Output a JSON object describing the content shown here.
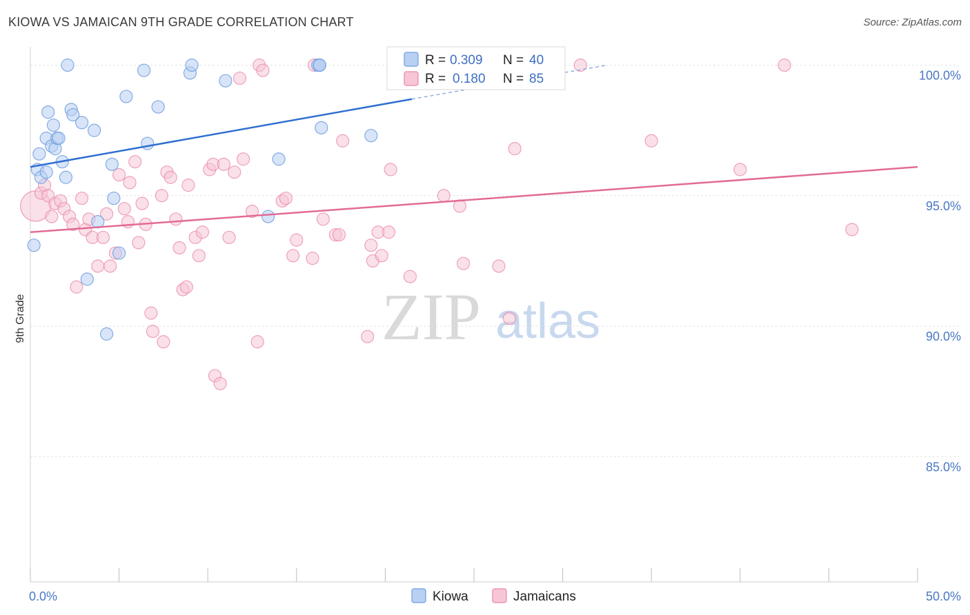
{
  "title": "KIOWA VS JAMAICAN 9TH GRADE CORRELATION CHART",
  "source": "Source: ZipAtlas.com",
  "watermark": {
    "zip": "ZIP",
    "atlas": "atlas"
  },
  "chart_data": {
    "type": "scatter",
    "ylabel": "9th Grade",
    "xlim": [
      0,
      50
    ],
    "ylim": [
      80.2,
      100.7
    ],
    "x_tick_labels": [
      {
        "value": 0,
        "label": "0.0%"
      },
      {
        "value": 50,
        "label": "50.0%"
      }
    ],
    "y_ticks": [
      {
        "value": 100,
        "label": "100.0%"
      },
      {
        "value": 95,
        "label": "95.0%"
      },
      {
        "value": 90,
        "label": "90.0%"
      },
      {
        "value": 85,
        "label": "85.0%"
      }
    ],
    "grid": true,
    "legend_position": "top-center",
    "colors": {
      "kiowa": "#6f9de0",
      "kiowa_fill": "#b8d0f2",
      "jamaicans": "#e986a8",
      "jamaicans_fill": "#f6c6d6"
    },
    "stats": [
      {
        "series": "Kiowa",
        "r_label": "R =",
        "r": "0.309",
        "n_label": "N =",
        "n": "40"
      },
      {
        "series": "Jamaicans",
        "r_label": "R =",
        "r": "0.180",
        "n_label": "N =",
        "n": "85"
      }
    ],
    "series": [
      {
        "name": "Kiowa",
        "trend": {
          "x0": 0,
          "y0": 96.1,
          "x1": 21.5,
          "y1": 98.7,
          "dash_x1": 32.5,
          "dash_y1": 100.0
        },
        "points": [
          [
            0.2,
            93.1
          ],
          [
            0.4,
            96.0
          ],
          [
            0.5,
            96.6
          ],
          [
            0.6,
            95.7
          ],
          [
            0.9,
            95.9
          ],
          [
            0.9,
            97.2
          ],
          [
            1.0,
            98.2
          ],
          [
            1.2,
            96.9
          ],
          [
            1.3,
            97.7
          ],
          [
            1.4,
            96.8
          ],
          [
            1.5,
            97.2
          ],
          [
            1.6,
            97.2
          ],
          [
            1.8,
            96.3
          ],
          [
            2.0,
            95.7
          ],
          [
            2.1,
            100.0
          ],
          [
            2.3,
            98.3
          ],
          [
            2.4,
            98.1
          ],
          [
            2.9,
            97.8
          ],
          [
            3.2,
            91.8
          ],
          [
            3.6,
            97.5
          ],
          [
            3.8,
            94.0
          ],
          [
            4.3,
            89.7
          ],
          [
            4.6,
            96.2
          ],
          [
            4.7,
            94.9
          ],
          [
            5.0,
            92.8
          ],
          [
            5.4,
            98.8
          ],
          [
            6.4,
            99.8
          ],
          [
            6.6,
            97.0
          ],
          [
            7.2,
            98.4
          ],
          [
            9.0,
            99.7
          ],
          [
            9.1,
            100.0
          ],
          [
            11.0,
            99.4
          ],
          [
            13.4,
            94.2
          ],
          [
            14.0,
            96.4
          ],
          [
            16.2,
            100.0
          ],
          [
            16.3,
            100.0
          ],
          [
            16.3,
            100.0
          ],
          [
            16.3,
            100.0
          ],
          [
            16.4,
            97.6
          ],
          [
            19.2,
            97.3
          ]
        ]
      },
      {
        "name": "Jamaicans",
        "trend": {
          "x0": 0,
          "y0": 93.6,
          "x1": 50,
          "y1": 96.1
        },
        "points": [
          [
            0.3,
            94.6
          ],
          [
            0.6,
            95.1
          ],
          [
            0.8,
            95.4
          ],
          [
            1.0,
            95.0
          ],
          [
            1.2,
            94.2
          ],
          [
            1.4,
            94.7
          ],
          [
            1.7,
            94.8
          ],
          [
            1.9,
            94.5
          ],
          [
            2.2,
            94.2
          ],
          [
            2.4,
            93.9
          ],
          [
            2.6,
            91.5
          ],
          [
            2.9,
            94.9
          ],
          [
            3.1,
            93.7
          ],
          [
            3.3,
            94.1
          ],
          [
            3.5,
            93.4
          ],
          [
            3.8,
            92.3
          ],
          [
            4.1,
            93.4
          ],
          [
            4.3,
            94.3
          ],
          [
            4.5,
            92.3
          ],
          [
            4.8,
            92.8
          ],
          [
            5.0,
            95.8
          ],
          [
            5.3,
            94.5
          ],
          [
            5.5,
            94.0
          ],
          [
            5.6,
            95.5
          ],
          [
            5.9,
            96.3
          ],
          [
            6.1,
            93.2
          ],
          [
            6.3,
            94.7
          ],
          [
            6.5,
            93.9
          ],
          [
            6.8,
            90.5
          ],
          [
            6.9,
            89.8
          ],
          [
            7.4,
            95.0
          ],
          [
            7.5,
            89.4
          ],
          [
            7.7,
            95.9
          ],
          [
            7.9,
            95.7
          ],
          [
            8.2,
            94.1
          ],
          [
            8.4,
            93.0
          ],
          [
            8.6,
            91.4
          ],
          [
            8.8,
            91.5
          ],
          [
            8.9,
            95.4
          ],
          [
            9.3,
            93.4
          ],
          [
            9.5,
            92.7
          ],
          [
            9.7,
            93.6
          ],
          [
            10.1,
            96.0
          ],
          [
            10.3,
            96.2
          ],
          [
            10.4,
            88.1
          ],
          [
            10.7,
            87.8
          ],
          [
            10.9,
            96.2
          ],
          [
            11.2,
            93.4
          ],
          [
            11.5,
            95.9
          ],
          [
            11.8,
            99.5
          ],
          [
            12.0,
            96.4
          ],
          [
            12.5,
            94.4
          ],
          [
            12.8,
            89.4
          ],
          [
            12.9,
            100.0
          ],
          [
            13.1,
            99.8
          ],
          [
            14.2,
            94.8
          ],
          [
            14.4,
            94.9
          ],
          [
            14.8,
            92.7
          ],
          [
            15.0,
            93.3
          ],
          [
            15.9,
            92.6
          ],
          [
            16.0,
            100.0
          ],
          [
            16.5,
            94.1
          ],
          [
            17.2,
            93.5
          ],
          [
            17.4,
            93.5
          ],
          [
            17.6,
            97.1
          ],
          [
            19.0,
            89.6
          ],
          [
            19.2,
            93.1
          ],
          [
            19.3,
            92.5
          ],
          [
            19.6,
            93.6
          ],
          [
            19.8,
            92.7
          ],
          [
            20.2,
            93.6
          ],
          [
            20.3,
            96.0
          ],
          [
            21.4,
            91.9
          ],
          [
            23.3,
            95.0
          ],
          [
            24.2,
            94.6
          ],
          [
            24.4,
            92.4
          ],
          [
            26.4,
            92.3
          ],
          [
            26.5,
            100.0
          ],
          [
            27.0,
            90.3
          ],
          [
            27.3,
            96.8
          ],
          [
            35.0,
            97.1
          ],
          [
            42.5,
            100.0
          ],
          [
            46.3,
            93.7
          ],
          [
            40.0,
            96.0
          ],
          [
            31.0,
            100.0
          ]
        ]
      }
    ]
  },
  "bottom_legend": [
    {
      "name": "Kiowa"
    },
    {
      "name": "Jamaicans"
    }
  ]
}
